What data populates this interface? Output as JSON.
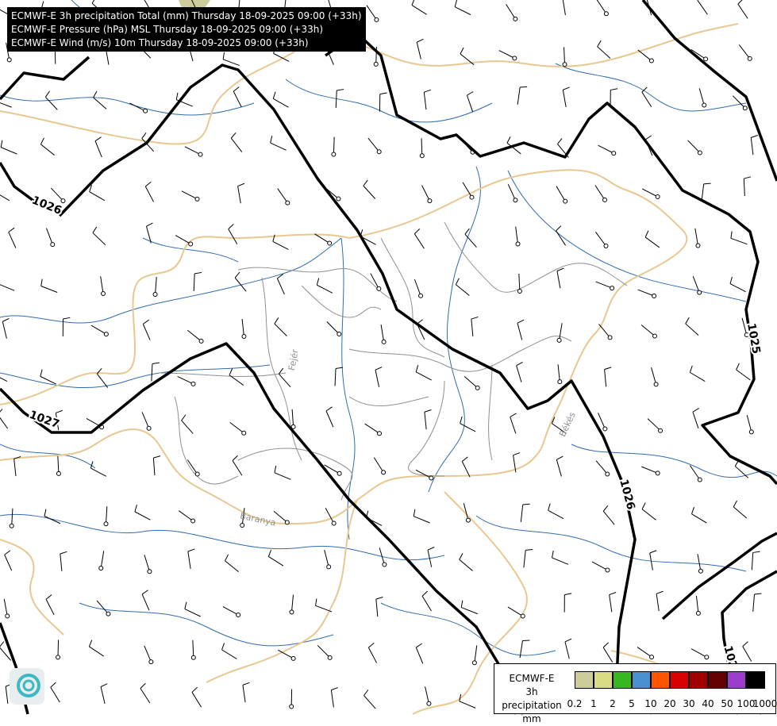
{
  "titles": [
    "ECMWF-E 3h precipitation Total (mm) Thursday 18-09-2025 09:00 (+33h)",
    "ECMWF-E Pressure (hPa) MSL Thursday 18-09-2025 09:00 (+33h)",
    "ECMWF-E Wind (m/s) 10m Thursday 18-09-2025 09:00 (+33h)"
  ],
  "isobar_labels": [
    "1026",
    "1027",
    "1025",
    "1026",
    "102"
  ],
  "place_labels": [
    "Fejér",
    "Baranya",
    "Békés"
  ],
  "legend": {
    "title_line1": "ECMWF-E",
    "title_line2": "3h precipitation",
    "unit": "mm",
    "colors": [
      "#cfcc9c",
      "#d9dc86",
      "#38b820",
      "#4a8fd0",
      "#ff5500",
      "#d80000",
      "#a00000",
      "#640000",
      "#9c3ccc",
      "#000000"
    ],
    "ticks": [
      "0.2",
      "1",
      "2",
      "5",
      "10",
      "20",
      "30",
      "40",
      "50",
      "100",
      "1000"
    ]
  },
  "colors": {
    "isobar": "#000000",
    "river": "#2f6db0",
    "country_border": "#e8c890",
    "county_border": "#909090"
  }
}
